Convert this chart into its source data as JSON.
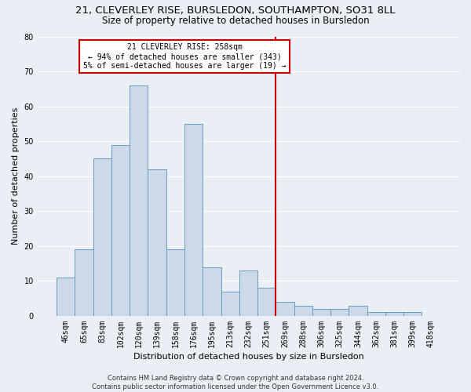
{
  "title1": "21, CLEVERLEY RISE, BURSLEDON, SOUTHAMPTON, SO31 8LL",
  "title2": "Size of property relative to detached houses in Bursledon",
  "xlabel": "Distribution of detached houses by size in Bursledon",
  "ylabel": "Number of detached properties",
  "footer1": "Contains HM Land Registry data © Crown copyright and database right 2024.",
  "footer2": "Contains public sector information licensed under the Open Government Licence v3.0.",
  "bar_labels": [
    "46sqm",
    "65sqm",
    "83sqm",
    "102sqm",
    "120sqm",
    "139sqm",
    "158sqm",
    "176sqm",
    "195sqm",
    "213sqm",
    "232sqm",
    "251sqm",
    "269sqm",
    "288sqm",
    "306sqm",
    "325sqm",
    "344sqm",
    "362sqm",
    "381sqm",
    "399sqm",
    "418sqm"
  ],
  "bar_heights": [
    11,
    19,
    45,
    49,
    66,
    42,
    19,
    55,
    14,
    7,
    13,
    8,
    4,
    3,
    2,
    2,
    3,
    1,
    1,
    1,
    0
  ],
  "bar_color": "#ccd9e8",
  "bar_edge_color": "#6b9abf",
  "vline_color": "#cc0000",
  "annotation_text": "21 CLEVERLEY RISE: 258sqm\n← 94% of detached houses are smaller (343)\n5% of semi-detached houses are larger (19) →",
  "annotation_box_color": "#cc0000",
  "ylim": [
    0,
    80
  ],
  "yticks": [
    0,
    10,
    20,
    30,
    40,
    50,
    60,
    70,
    80
  ],
  "bg_color": "#eaeff6",
  "plot_bg_color": "#eaeff6",
  "grid_color": "#ffffff",
  "title1_fontsize": 9.5,
  "title2_fontsize": 8.5,
  "xlabel_fontsize": 8,
  "ylabel_fontsize": 8,
  "tick_fontsize": 7,
  "annot_fontsize": 7
}
